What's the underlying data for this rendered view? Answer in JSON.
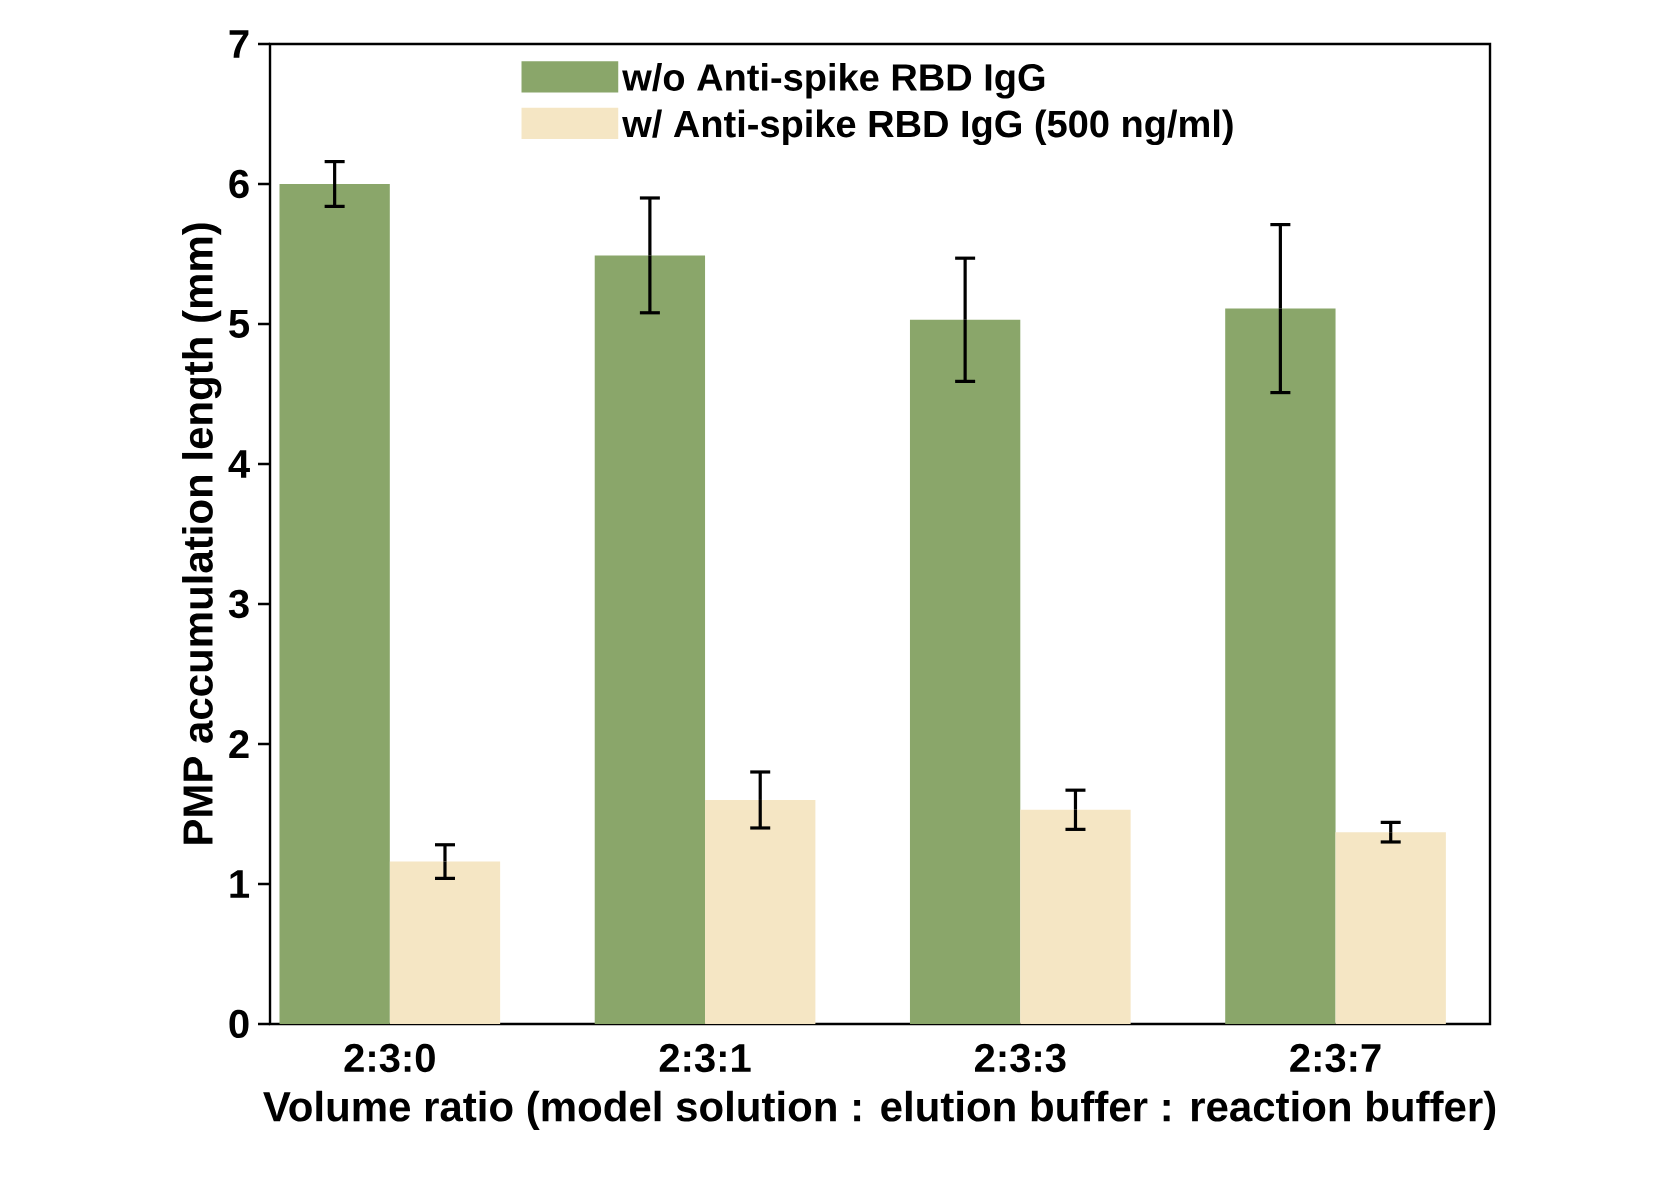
{
  "chart_data": {
    "type": "bar",
    "xlabel": "Volume ratio (model solution : elution buffer : reaction buffer)",
    "ylabel": "PMP accumulation length (mm)",
    "categories": [
      "2:3:0",
      "2:3:1",
      "2:3:3",
      "2:3:7"
    ],
    "series": [
      {
        "name": "w/o Anti-spike RBD IgG",
        "color": "#8aa66a",
        "values": [
          6.0,
          5.49,
          5.03,
          5.11
        ],
        "errors": [
          0.16,
          0.41,
          0.44,
          0.6
        ]
      },
      {
        "name": "w/  Anti-spike RBD IgG (500 ng/ml)",
        "color": "#f5e6c4",
        "values": [
          1.16,
          1.6,
          1.53,
          1.37
        ],
        "errors": [
          0.12,
          0.2,
          0.14,
          0.07
        ]
      }
    ],
    "ylim": [
      0,
      7
    ],
    "yticks": [
      0,
      1,
      2,
      3,
      4,
      5,
      6,
      7
    ],
    "legend": "top",
    "grid": false
  }
}
